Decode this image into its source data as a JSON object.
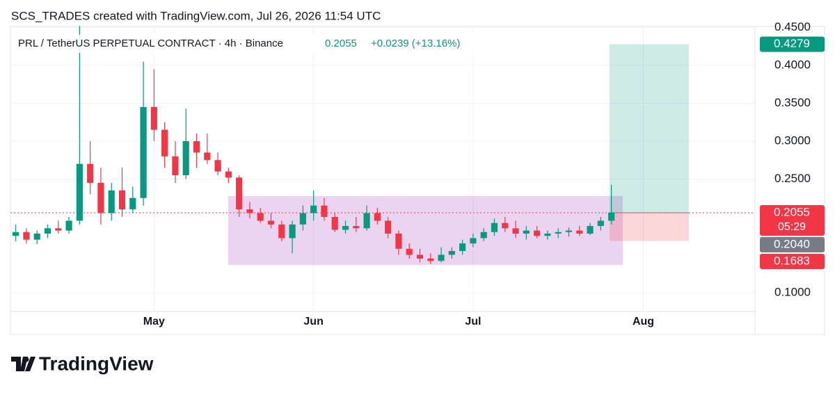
{
  "header": {
    "attribution": "SCS_TRADES created with TradingView.com, Jul 26, 2026 11:54 UTC",
    "symbol": "PRL / TetherUS PERPETUAL CONTRACT · 4h · Binance",
    "last": 0.2055,
    "change": "+0.0239 (+13.16%)"
  },
  "chart_data": {
    "type": "candlestick",
    "categories": [
      null,
      null,
      null,
      null,
      null,
      null,
      null,
      null,
      null,
      null,
      null,
      null,
      null,
      "May",
      null,
      null,
      null,
      null,
      null,
      null,
      null,
      null,
      null,
      null,
      null,
      null,
      null,
      null,
      "Jun",
      null,
      null,
      null,
      null,
      null,
      null,
      null,
      null,
      null,
      null,
      null,
      null,
      null,
      null,
      "Jul",
      null,
      null,
      null,
      null,
      null,
      null,
      null,
      null,
      null,
      null,
      null,
      null,
      null,
      null,
      null,
      "Aug",
      null,
      null,
      null,
      null,
      null,
      null,
      null,
      null,
      null,
      null
    ],
    "open": [
      0.175,
      0.18,
      0.17,
      0.178,
      0.185,
      0.182,
      0.195,
      0.27,
      0.245,
      0.205,
      0.235,
      0.21,
      0.225,
      0.345,
      0.315,
      0.28,
      0.255,
      0.3,
      0.285,
      0.275,
      0.26,
      0.252,
      0.21,
      0.205,
      0.195,
      0.19,
      0.172,
      0.19,
      0.205,
      0.215,
      0.2,
      0.183,
      0.188,
      0.185,
      0.205,
      0.195,
      0.178,
      0.158,
      0.15,
      0.145,
      0.142,
      0.15,
      0.155,
      0.165,
      0.172,
      0.18,
      0.192,
      0.185,
      0.178,
      0.182,
      0.175,
      0.178,
      0.18,
      0.182,
      0.178,
      0.188,
      0.195,
      null,
      null,
      null,
      null,
      null,
      null,
      null,
      null,
      null,
      null,
      null,
      null,
      null
    ],
    "high": [
      0.19,
      0.185,
      0.182,
      0.19,
      0.195,
      0.2,
      0.452,
      0.3,
      0.265,
      0.245,
      0.265,
      0.24,
      0.405,
      0.395,
      0.325,
      0.3,
      0.343,
      0.31,
      0.31,
      0.285,
      0.265,
      0.255,
      0.22,
      0.212,
      0.205,
      0.195,
      0.195,
      0.215,
      0.235,
      0.225,
      0.205,
      0.195,
      0.2,
      0.215,
      0.212,
      0.2,
      0.182,
      0.165,
      0.158,
      0.152,
      0.16,
      0.16,
      0.17,
      0.178,
      0.185,
      0.198,
      0.2,
      0.195,
      0.188,
      0.188,
      0.182,
      0.185,
      0.186,
      0.188,
      0.192,
      0.2,
      0.2425,
      null,
      null,
      null,
      null,
      null,
      null,
      null,
      null,
      null,
      null,
      null,
      null,
      null
    ],
    "low": [
      0.168,
      0.165,
      0.164,
      0.172,
      0.178,
      0.178,
      0.19,
      0.23,
      0.19,
      0.195,
      0.2,
      0.205,
      0.215,
      0.3,
      0.265,
      0.245,
      0.25,
      0.265,
      0.27,
      0.255,
      0.245,
      0.2,
      0.198,
      0.192,
      0.185,
      0.168,
      0.152,
      0.182,
      0.195,
      0.195,
      0.18,
      0.178,
      0.18,
      0.182,
      0.19,
      0.172,
      0.15,
      0.145,
      0.14,
      0.138,
      0.14,
      0.145,
      0.15,
      0.16,
      0.168,
      0.175,
      0.18,
      0.172,
      0.17,
      0.172,
      0.17,
      0.172,
      0.174,
      0.175,
      0.176,
      0.182,
      0.19,
      null,
      null,
      null,
      null,
      null,
      null,
      null,
      null,
      null,
      null,
      null,
      null,
      null
    ],
    "close": [
      0.18,
      0.17,
      0.178,
      0.185,
      0.182,
      0.195,
      0.27,
      0.245,
      0.205,
      0.235,
      0.21,
      0.225,
      0.345,
      0.315,
      0.28,
      0.255,
      0.3,
      0.285,
      0.275,
      0.26,
      0.252,
      0.21,
      0.205,
      0.195,
      0.19,
      0.172,
      0.19,
      0.205,
      0.215,
      0.2,
      0.183,
      0.188,
      0.185,
      0.205,
      0.195,
      0.178,
      0.158,
      0.15,
      0.145,
      0.142,
      0.15,
      0.155,
      0.165,
      0.172,
      0.18,
      0.192,
      0.185,
      0.178,
      0.182,
      0.175,
      0.178,
      0.18,
      0.182,
      0.178,
      0.188,
      0.195,
      0.2055,
      null,
      null,
      null,
      null,
      null,
      null,
      null,
      null,
      null,
      null,
      null,
      null,
      null
    ],
    "up_color": "#089981",
    "down_color": "#f23645",
    "ylim": [
      0.0752,
      0.4514
    ],
    "yticks": [
      {
        "value": 0.1,
        "label": "0.1000"
      },
      {
        "value": 0.25,
        "label": "0.2500"
      },
      {
        "value": 0.3,
        "label": "0.3000"
      },
      {
        "value": 0.35,
        "label": "0.3500"
      },
      {
        "value": 0.4,
        "label": "0.4000"
      },
      {
        "value": 0.45,
        "label": "0.4500"
      }
    ],
    "grid": true,
    "range_box": {
      "top": 0.2275,
      "bottom": 0.1367,
      "color": "#ce93d8"
    },
    "position": {
      "target": 0.4279,
      "entry": 0.2055,
      "stop": 0.1683
    },
    "price_labels": [
      0.4279,
      0.2055,
      {
        "value": 0.204,
        "label": "0.2040"
      },
      0.1683
    ],
    "price_label_colors": [
      "#089981",
      "#f23645",
      "#787b86",
      "#f23645"
    ],
    "countdown": "05:29"
  },
  "footer": {
    "logo": "TradingView"
  }
}
